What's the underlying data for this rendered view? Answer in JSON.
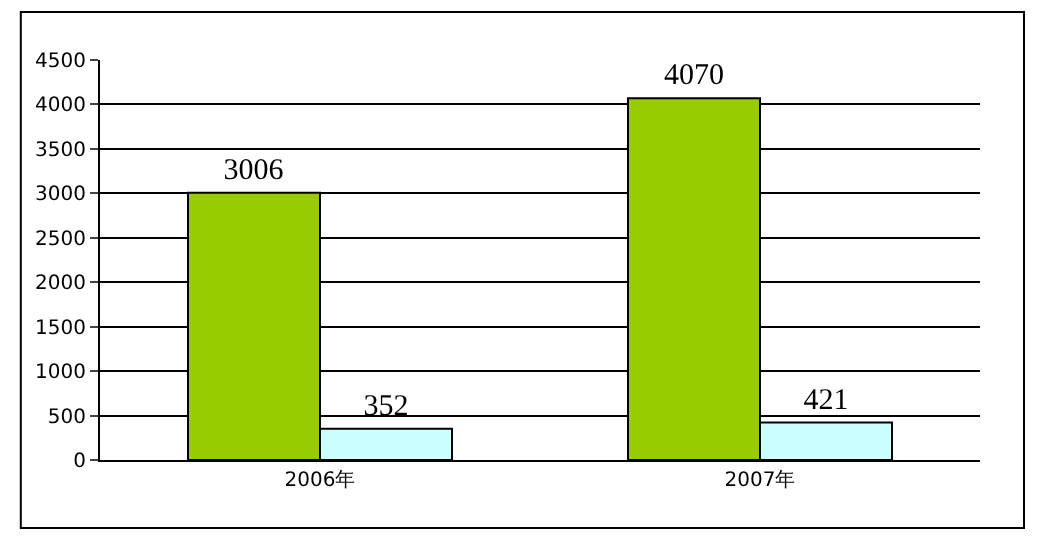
{
  "chart_data": {
    "type": "bar",
    "categories": [
      "2006年",
      "2007年"
    ],
    "series": [
      {
        "color": "#99cc00",
        "values": [
          3006,
          4070
        ]
      },
      {
        "color": "#ccffff",
        "values": [
          352,
          421
        ]
      }
    ],
    "ylim": [
      0,
      4500
    ],
    "yticks": [
      0,
      500,
      1000,
      1500,
      2000,
      2500,
      3000,
      3500,
      4000,
      4500
    ],
    "grid": "y",
    "data_labels": true
  }
}
